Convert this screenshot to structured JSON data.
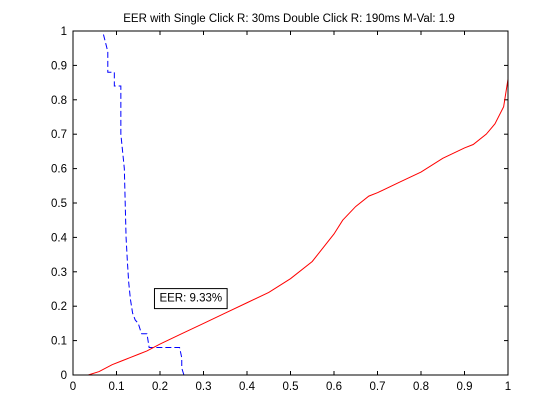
{
  "chart_data": {
    "type": "line",
    "title": "EER with Single Click R: 30ms Double Click R: 190ms M-Val: 1.9",
    "xlabel": "",
    "ylabel": "",
    "xlim": [
      0,
      1
    ],
    "ylim": [
      0,
      1
    ],
    "xticks": [
      "0",
      "0.1",
      "0.2",
      "0.3",
      "0.4",
      "0.5",
      "0.6",
      "0.7",
      "0.8",
      "0.9",
      "1"
    ],
    "yticks": [
      "0",
      "0.1",
      "0.2",
      "0.3",
      "0.4",
      "0.5",
      "0.6",
      "0.7",
      "0.8",
      "0.9",
      "1"
    ],
    "grid": false,
    "series": [
      {
        "color": "#0000ff",
        "style": "dashed",
        "x": [
          0.07,
          0.08,
          0.08,
          0.095,
          0.095,
          0.11,
          0.11,
          0.118,
          0.12,
          0.122,
          0.125,
          0.128,
          0.132,
          0.137,
          0.143,
          0.15,
          0.155,
          0.158,
          0.165,
          0.17,
          0.175,
          0.185,
          0.19,
          0.22,
          0.245,
          0.25,
          0.25,
          0.255
        ],
        "y": [
          0.99,
          0.94,
          0.88,
          0.88,
          0.84,
          0.84,
          0.7,
          0.6,
          0.5,
          0.4,
          0.33,
          0.27,
          0.22,
          0.18,
          0.16,
          0.15,
          0.13,
          0.12,
          0.12,
          0.12,
          0.08,
          0.08,
          0.08,
          0.08,
          0.08,
          0.05,
          0.02,
          0.0
        ]
      },
      {
        "color": "#ff0000",
        "style": "solid",
        "x": [
          0.035,
          0.06,
          0.09,
          0.11,
          0.13,
          0.15,
          0.17,
          0.2,
          0.25,
          0.3,
          0.35,
          0.4,
          0.45,
          0.5,
          0.55,
          0.6,
          0.62,
          0.65,
          0.68,
          0.7,
          0.75,
          0.8,
          0.85,
          0.9,
          0.92,
          0.95,
          0.97,
          0.99,
          0.995,
          1.0,
          1.0
        ],
        "y": [
          0.0,
          0.01,
          0.03,
          0.04,
          0.05,
          0.06,
          0.07,
          0.09,
          0.12,
          0.15,
          0.18,
          0.21,
          0.24,
          0.28,
          0.33,
          0.41,
          0.45,
          0.49,
          0.52,
          0.53,
          0.56,
          0.59,
          0.63,
          0.66,
          0.67,
          0.7,
          0.73,
          0.78,
          0.82,
          0.86,
          1.0
        ]
      }
    ],
    "annotations": [
      {
        "text": "EER: 9.33%",
        "x": 0.185,
        "y": 0.225
      }
    ]
  }
}
